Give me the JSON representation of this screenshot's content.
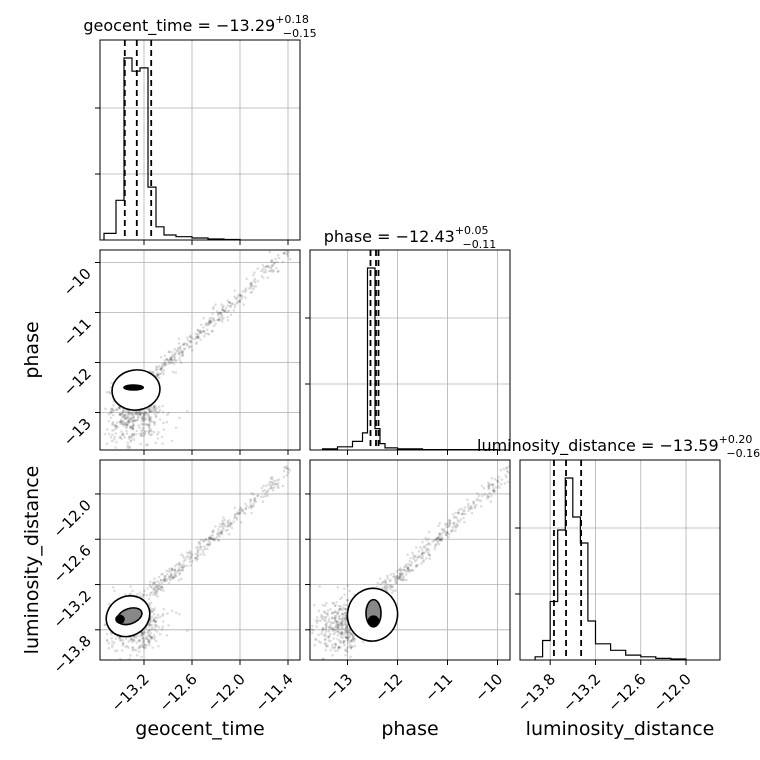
{
  "chart_data": {
    "type": "corner",
    "parameters": [
      "geocent_time",
      "phase",
      "luminosity_distance"
    ],
    "titles": [
      {
        "parameter": "geocent_time",
        "text": "geocent_time = −13.29",
        "upper": "+0.18",
        "lower": "−0.15"
      },
      {
        "parameter": "phase",
        "text": "phase = −12.43",
        "upper": "+0.05",
        "lower": "−0.11"
      },
      {
        "parameter": "luminosity_distance",
        "text": "luminosity_distance = −13.59",
        "upper": "+0.20",
        "lower": "−0.16"
      }
    ],
    "axis_ranges": {
      "geocent_time": [
        -13.75,
        -11.25
      ],
      "phase": [
        -13.75,
        -9.75
      ],
      "luminosity_distance": [
        -14.2,
        -11.55
      ]
    },
    "quantiles": {
      "geocent_time": [
        -13.44,
        -13.29,
        -13.11
      ],
      "phase": [
        -12.54,
        -12.43,
        -12.38
      ],
      "luminosity_distance": [
        -13.75,
        -13.59,
        -13.39
      ]
    },
    "histograms": {
      "geocent_time": {
        "edges": [
          -13.7,
          -13.55,
          -13.45,
          -13.35,
          -13.25,
          -13.15,
          -13.05,
          -12.95,
          -12.8,
          -12.6,
          -12.4,
          -12.2,
          -12.0
        ],
        "counts": [
          2,
          12,
          55,
          51,
          52,
          16,
          4,
          1.5,
          1,
          0.6,
          0.3,
          0.15
        ]
      },
      "phase": {
        "edges": [
          -13.5,
          -13.2,
          -12.9,
          -12.7,
          -12.6,
          -12.5,
          -12.45,
          -12.35,
          -12.25,
          -12.0,
          -11.5,
          -10.0
        ],
        "counts": [
          0.5,
          1.5,
          4,
          8,
          85,
          85,
          10,
          3,
          1,
          0.5,
          0.2
        ]
      },
      "luminosity_distance": {
        "edges": [
          -14.0,
          -13.9,
          -13.8,
          -13.7,
          -13.6,
          -13.5,
          -13.4,
          -13.3,
          -13.2,
          -13.0,
          -12.8,
          -12.6,
          -12.4,
          -12.2,
          -12.0
        ],
        "counts": [
          1,
          6,
          18,
          40,
          56,
          44,
          36,
          12,
          5,
          3,
          1.5,
          1,
          0.5,
          0.3
        ]
      }
    },
    "tick_labels": {
      "geocent_time": [
        "−13.2",
        "−12.6",
        "−12.0",
        "−11.4"
      ],
      "phase": [
        "−13",
        "−12",
        "−11",
        "−10"
      ],
      "luminosity_distance": [
        "−13.8",
        "−13.2",
        "−12.6",
        "−12.0"
      ]
    },
    "tick_values": {
      "geocent_time": [
        -13.2,
        -12.6,
        -12.0,
        -11.4
      ],
      "phase": [
        -13,
        -12,
        -11,
        -10
      ],
      "luminosity_distance": [
        -13.8,
        -13.2,
        -12.6,
        -12.0
      ]
    },
    "xlabels": [
      "geocent_time",
      "phase",
      "luminosity_distance"
    ],
    "ylabels": [
      "phase",
      "luminosity_distance"
    ],
    "grid": true,
    "colors": {
      "line": "#000000",
      "grid": "#b0b0b0",
      "points": "#000000"
    }
  }
}
